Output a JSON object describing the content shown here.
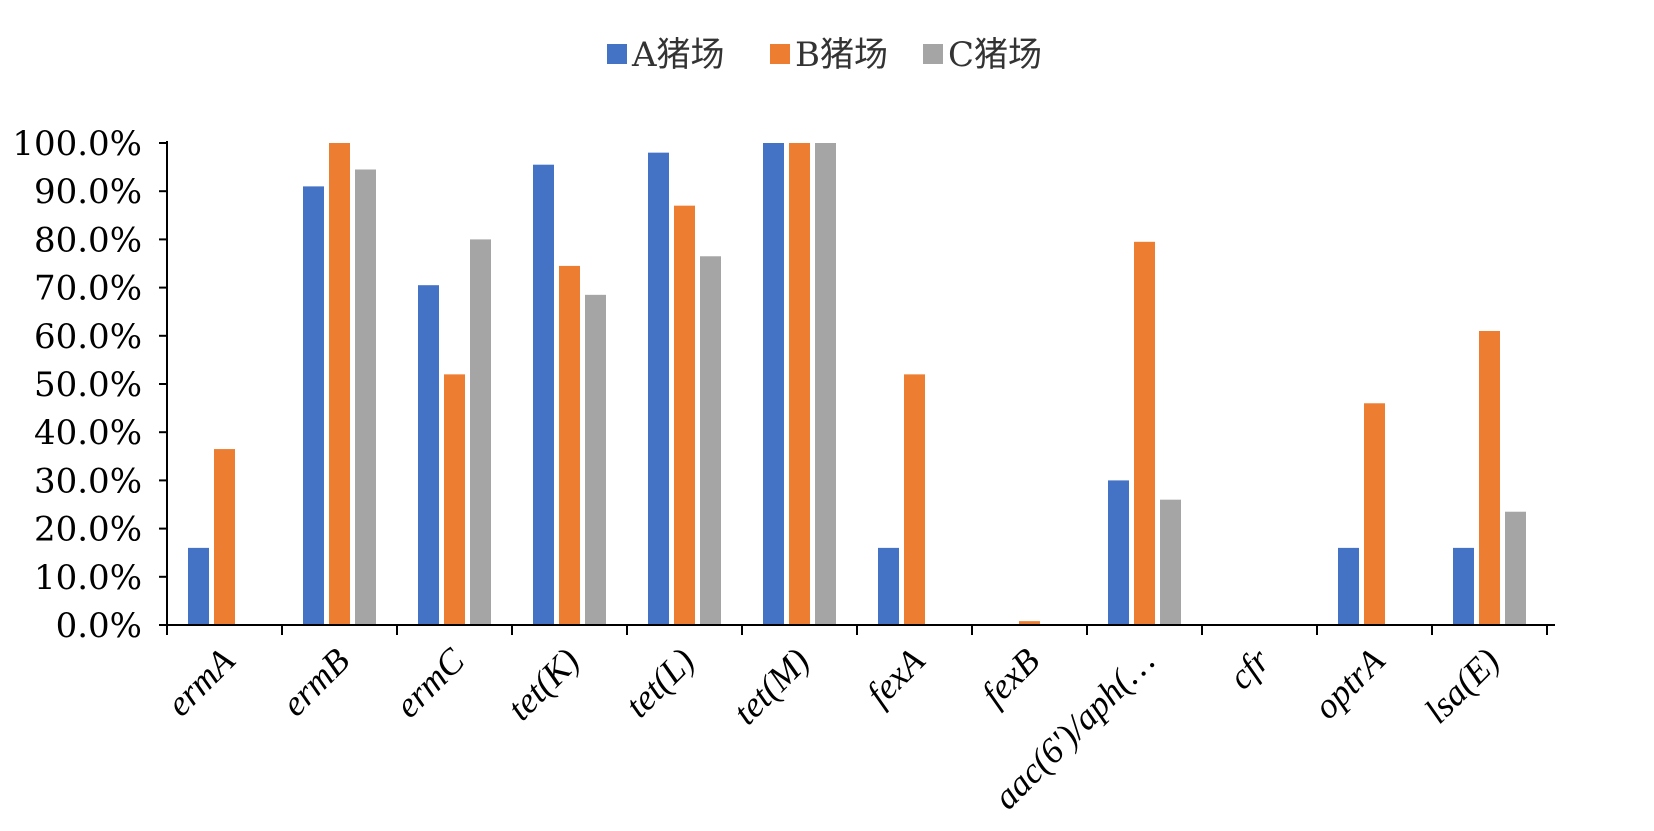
{
  "chart_data": {
    "type": "bar",
    "categories": [
      "ermA",
      "ermB",
      "ermC",
      "tet(K)",
      "tet(L)",
      "tet(M)",
      "fexA",
      "fexB",
      "aac(6')/aph(…",
      "cfr",
      "optrA",
      "lsa(E)"
    ],
    "series": [
      {
        "name": "A猪场",
        "color": "#4472C4",
        "values": [
          16.0,
          91.0,
          70.5,
          95.5,
          98.0,
          100.0,
          16.0,
          0.0,
          30.0,
          0.0,
          16.0,
          16.0
        ]
      },
      {
        "name": "B猪场",
        "color": "#ED7D31",
        "values": [
          36.5,
          100.0,
          52.0,
          74.5,
          87.0,
          100.0,
          52.0,
          0.8,
          79.5,
          0.0,
          46.0,
          61.0
        ]
      },
      {
        "name": "C猪场",
        "color": "#A5A5A5",
        "values": [
          0.0,
          94.5,
          80.0,
          68.5,
          76.5,
          100.0,
          0.0,
          0.0,
          26.0,
          0.0,
          0.0,
          23.5
        ]
      }
    ],
    "y_ticks": [
      "0.0%",
      "10.0%",
      "20.0%",
      "30.0%",
      "40.0%",
      "50.0%",
      "60.0%",
      "70.0%",
      "80.0%",
      "90.0%",
      "100.0%"
    ],
    "ylim": [
      0,
      100
    ],
    "grid": false,
    "legend_position": "top"
  }
}
